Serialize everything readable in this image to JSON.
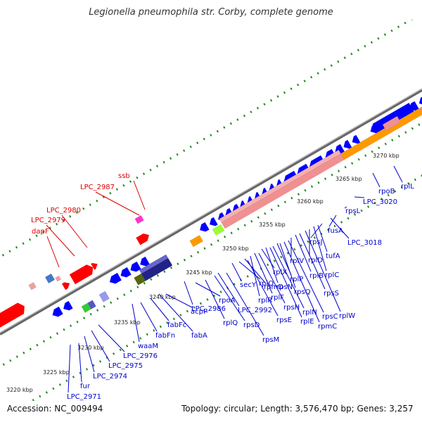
{
  "title": "Legionella pneumophila str. Corby, complete genome",
  "accession": "Accession: NC_009494",
  "summary": "Topology: circular; Length: 3,576,470 bp; Genes: 3,257",
  "colors": {
    "cds_forward": "#ff0000",
    "cds_reverse": "#0000ff",
    "label_forward": "#dd0000",
    "label_reverse": "#0000cc",
    "ribosomal": "#f09090",
    "orange": "#ff9900",
    "gc_dots": "#228822",
    "backbone": "#888888"
  },
  "scale_labels": [
    "3220 kbp",
    "3225 kbp",
    "3230 kbp",
    "3235 kbp",
    "3240 kbp",
    "3245 kbp",
    "3250 kbp",
    "3255 kbp",
    "3260 kbp",
    "3265 kbp",
    "3270 kbp"
  ],
  "forward_genes": [
    "dapF",
    "LPC_2979",
    "LPC_2980",
    "LPC_2987",
    "ssb"
  ],
  "reverse_genes": [
    "LPC_2971",
    "fur",
    "LPC_2974",
    "LPC_2975",
    "LPC_2976",
    "waaM",
    "fabFn",
    "fabFc",
    "fabA",
    "acpP",
    "LPC_2986",
    "rpoA",
    "rplQ",
    "rpsD",
    "LPC_2992",
    "rpsM",
    "secY",
    "rplO",
    "rpmD",
    "rpsE",
    "rplR",
    "rplF",
    "rpsH",
    "rplX",
    "rpsN",
    "rplE",
    "rplN",
    "rplP",
    "rpsQ",
    "rpmC",
    "rpsC",
    "rplV",
    "rplB",
    "rpsS",
    "rplW",
    "rplD",
    "rplC",
    "tufA",
    "rpsJ",
    "LPC_3018",
    "fusA",
    "rpsL",
    "LPC_3020",
    "rpoB",
    "rplL"
  ]
}
